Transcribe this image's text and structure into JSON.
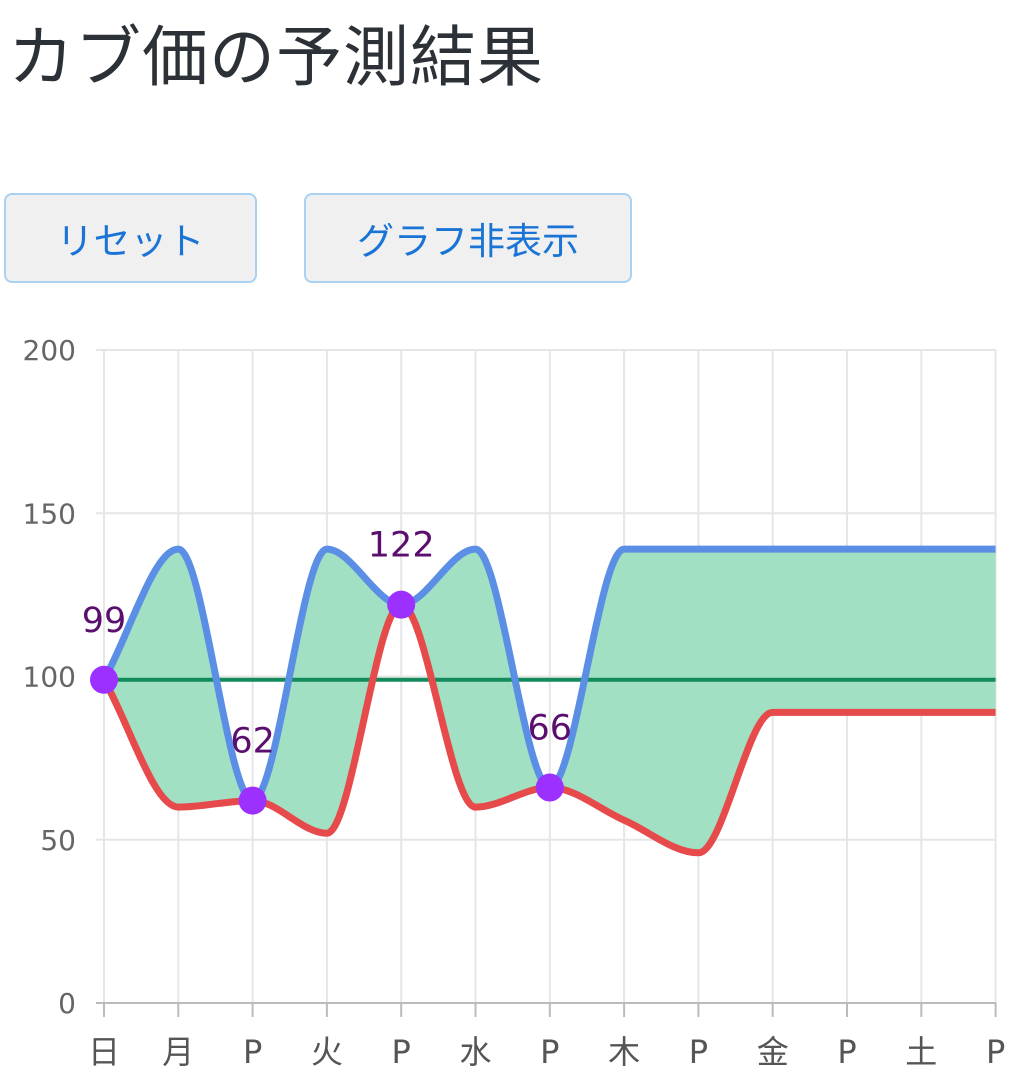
{
  "page": {
    "title": "カブ価の予測結果"
  },
  "buttons": {
    "reset_label": "リセット",
    "hide_graph_label": "グラフ非表示"
  },
  "colors": {
    "title": "#2b3136",
    "button_text": "#1a74d6",
    "button_border": "#a9d1f2",
    "button_bg": "#f0f0f0",
    "max_line": "#5b8fe6",
    "min_line": "#e64a4a",
    "range_fill": "#a2e0c3",
    "baseline": "#138a5c",
    "point": "#9b30ff",
    "point_label": "#5a0f6e",
    "grid": "#e6e6e6"
  },
  "chart_data": {
    "type": "area",
    "categories": [
      "日",
      "月",
      "P",
      "火",
      "P",
      "水",
      "P",
      "木",
      "P",
      "金",
      "P",
      "土",
      "P"
    ],
    "ylim": [
      0,
      200
    ],
    "yticks": [
      0,
      50,
      100,
      150,
      200
    ],
    "grid": true,
    "series": [
      {
        "key": "max",
        "values": [
          99,
          139,
          62,
          139,
          122,
          139,
          66,
          139,
          139,
          139,
          139,
          139,
          139
        ]
      },
      {
        "key": "min",
        "values": [
          99,
          60,
          62,
          52,
          122,
          60,
          66,
          56,
          46,
          89,
          89,
          89,
          89
        ]
      },
      {
        "key": "baseline",
        "values": [
          99,
          99,
          99,
          99,
          99,
          99,
          99,
          99,
          99,
          99,
          99,
          99,
          99
        ]
      }
    ],
    "points": [
      {
        "index": 0,
        "value": 99
      },
      {
        "index": 2,
        "value": 62
      },
      {
        "index": 4,
        "value": 122
      },
      {
        "index": 6,
        "value": 66
      }
    ]
  }
}
